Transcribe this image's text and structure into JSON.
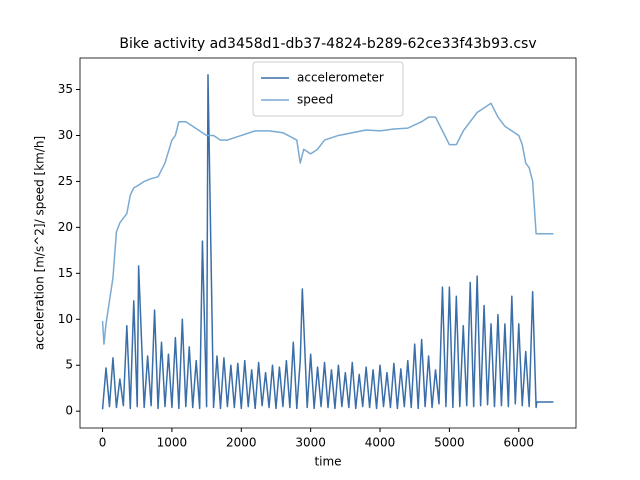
{
  "chart_data": {
    "type": "line",
    "title": "Bike activity ad3458d1-db37-4824-b289-62ce33f43b93.csv",
    "x_label": "time",
    "y_label": "acceleration [m/s^2]/ speed [km/h]",
    "xlim": [
      -325,
      6825
    ],
    "ylim": [
      -1.83,
      38.43
    ],
    "xticks": [
      0,
      1000,
      2000,
      3000,
      4000,
      5000,
      6000
    ],
    "yticks": [
      0,
      5,
      10,
      15,
      20,
      25,
      30,
      35
    ],
    "legend": "upper center",
    "series": [
      {
        "name": "accelerometer",
        "color": "#3a6ea8",
        "x": [
          0,
          50,
          100,
          150,
          200,
          250,
          300,
          350,
          400,
          450,
          500,
          520,
          600,
          650,
          700,
          750,
          800,
          850,
          900,
          950,
          1000,
          1050,
          1100,
          1150,
          1200,
          1250,
          1300,
          1350,
          1400,
          1440,
          1500,
          1520,
          1600,
          1650,
          1700,
          1750,
          1800,
          1850,
          1900,
          1950,
          2000,
          2050,
          2100,
          2150,
          2200,
          2250,
          2300,
          2350,
          2400,
          2450,
          2500,
          2550,
          2600,
          2650,
          2700,
          2750,
          2800,
          2850,
          2880,
          2950,
          3000,
          3050,
          3100,
          3150,
          3200,
          3250,
          3300,
          3350,
          3400,
          3450,
          3500,
          3550,
          3600,
          3650,
          3700,
          3750,
          3800,
          3850,
          3900,
          3950,
          4000,
          4050,
          4100,
          4150,
          4200,
          4250,
          4300,
          4350,
          4400,
          4450,
          4500,
          4550,
          4600,
          4650,
          4700,
          4750,
          4800,
          4850,
          4900,
          4950,
          5000,
          5050,
          5100,
          5150,
          5200,
          5250,
          5300,
          5350,
          5400,
          5450,
          5500,
          5550,
          5600,
          5650,
          5700,
          5750,
          5800,
          5850,
          5900,
          5950,
          6000,
          6050,
          6100,
          6150,
          6200,
          6250,
          6260,
          6500
        ],
        "values": [
          0.2,
          4.7,
          0.5,
          5.8,
          0.4,
          3.5,
          0.6,
          9.3,
          0.3,
          12,
          0.5,
          15.8,
          0.4,
          6,
          0.6,
          11,
          0.3,
          7.5,
          0.5,
          6.2,
          0.4,
          8,
          0.3,
          10,
          0.5,
          7,
          0.4,
          5.5,
          0.3,
          18.5,
          0.5,
          36.6,
          0.4,
          6,
          0.3,
          5.8,
          0.5,
          5,
          0.4,
          5.2,
          0.3,
          5.5,
          0.5,
          4.5,
          0.3,
          5.3,
          0.6,
          4.2,
          0.4,
          5,
          0.3,
          4.8,
          0.5,
          5.5,
          0.4,
          7.5,
          0.3,
          5.5,
          13.3,
          0.4,
          6.2,
          0.3,
          4.8,
          0.5,
          5.3,
          0.4,
          4.5,
          0.3,
          5,
          0.5,
          4.2,
          0.4,
          5.3,
          0.3,
          4,
          0.5,
          4.8,
          0.4,
          4.5,
          0.3,
          5,
          0.5,
          4.2,
          0.4,
          5.2,
          0.3,
          4.6,
          0.5,
          5.5,
          0.4,
          7.3,
          0.3,
          7.8,
          0.5,
          6,
          0.4,
          4.5,
          0.8,
          13.5,
          0.5,
          13.5,
          0.4,
          12.5,
          0.5,
          9.3,
          0.6,
          14,
          0.5,
          14.7,
          0.6,
          11.5,
          0.7,
          9.5,
          0.5,
          10.5,
          0.6,
          9.5,
          0.5,
          12.5,
          0.8,
          9.5,
          0.6,
          6.5,
          0.5,
          13,
          0.4,
          1,
          1
        ]
      },
      {
        "name": "speed",
        "color": "#7aaad2",
        "x": [
          0,
          20,
          50,
          100,
          150,
          200,
          250,
          300,
          350,
          400,
          450,
          500,
          600,
          700,
          800,
          900,
          1000,
          1050,
          1100,
          1200,
          1300,
          1400,
          1500,
          1600,
          1700,
          1800,
          2000,
          2200,
          2400,
          2600,
          2800,
          2850,
          2900,
          3000,
          3100,
          3200,
          3400,
          3600,
          3800,
          4000,
          4200,
          4400,
          4600,
          4700,
          4800,
          4900,
          5000,
          5100,
          5200,
          5300,
          5400,
          5500,
          5600,
          5700,
          5800,
          5900,
          6000,
          6050,
          6100,
          6150,
          6200,
          6250,
          6500
        ],
        "values": [
          9.8,
          7.3,
          9.5,
          12,
          14.5,
          19.5,
          20.5,
          21,
          21.5,
          23.5,
          24.3,
          24.5,
          25,
          25.3,
          25.5,
          27,
          29.5,
          30,
          31.5,
          31.5,
          31,
          30.5,
          30,
          30,
          29.5,
          29.5,
          30,
          30.5,
          30.5,
          30.3,
          29.5,
          27,
          28.5,
          28,
          28.5,
          29.5,
          30,
          30.3,
          30.6,
          30.5,
          30.7,
          30.8,
          31.5,
          32,
          32,
          30.5,
          29,
          29,
          30.5,
          31.5,
          32.5,
          33,
          33.5,
          32,
          31,
          30.5,
          30,
          29,
          27,
          26.5,
          25,
          19.3,
          19.3
        ]
      }
    ]
  }
}
